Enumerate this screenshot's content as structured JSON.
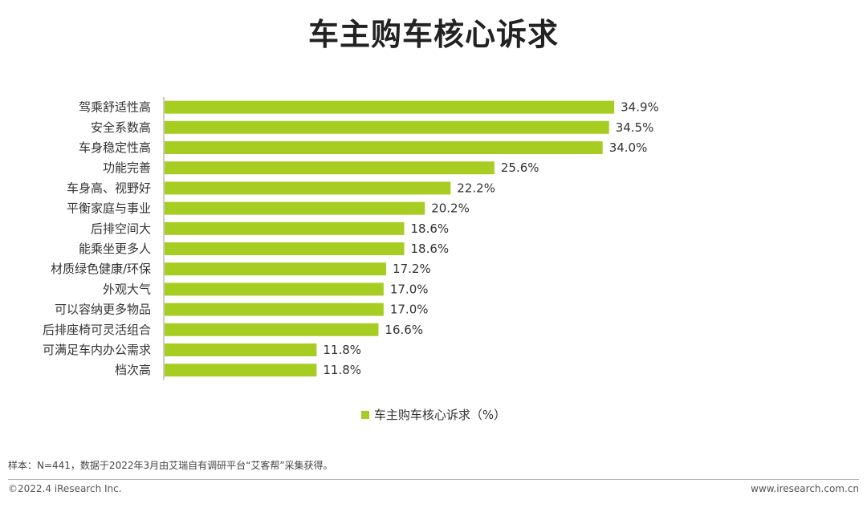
{
  "title": "车主购车核心诉求",
  "chart_data": {
    "type": "bar",
    "orientation": "horizontal",
    "categories": [
      "驾乘舒适性高",
      "安全系数高",
      "车身稳定性高",
      "功能完善",
      "车身高、视野好",
      "平衡家庭与事业",
      "后排空间大",
      "能乘坐更多人",
      "材质绿色健康/环保",
      "外观大气",
      "可以容纳更多物品",
      "后排座椅可灵活组合",
      "可满足车内办公需求",
      "档次高"
    ],
    "series": [
      {
        "name": "车主购车核心诉求（%）",
        "values": [
          34.9,
          34.5,
          34.0,
          25.6,
          22.2,
          20.2,
          18.6,
          18.6,
          17.2,
          17.0,
          17.0,
          16.6,
          11.8,
          11.8
        ]
      }
    ],
    "value_suffix": "%",
    "xlim": [
      0,
      40
    ],
    "grid": false,
    "legend_position": "bottom"
  },
  "colors": {
    "bar": "#a7cd22"
  },
  "note": "样本：N=441，数据于2022年3月由艾瑞自有调研平台“艾客帮”采集获得。",
  "footer": {
    "copyright": "©2022.4 iResearch Inc.",
    "site": "www.iresearch.com.cn"
  }
}
